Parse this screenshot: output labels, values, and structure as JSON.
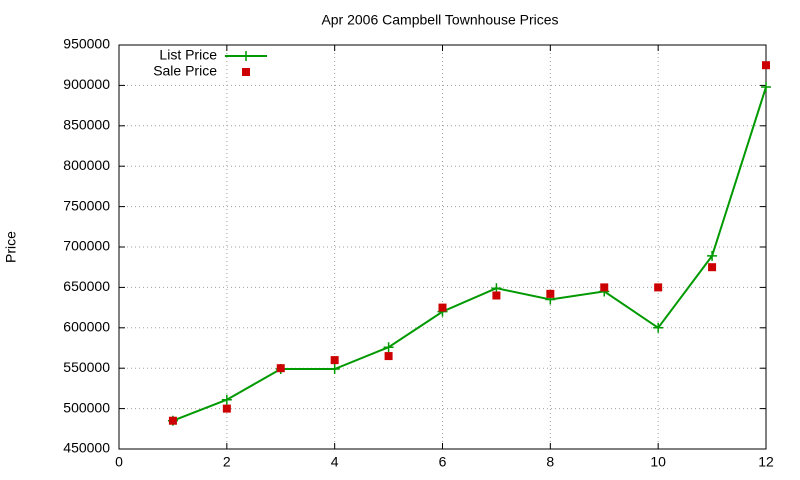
{
  "chart_data": {
    "type": "line",
    "title": "Apr 2006 Campbell Townhouse Prices",
    "y_label": "Price",
    "x": [
      1,
      2,
      3,
      4,
      5,
      6,
      7,
      8,
      9,
      10,
      11,
      12
    ],
    "series": [
      {
        "name": "List Price",
        "color": "#009900",
        "mode": "linespoints",
        "values": [
          485000,
          511000,
          549000,
          549000,
          576000,
          620000,
          649000,
          635000,
          645000,
          600000,
          689000,
          898000
        ]
      },
      {
        "name": "Sale Price",
        "color": "#cc0000",
        "mode": "points",
        "values": [
          485000,
          500000,
          550000,
          560000,
          565000,
          625000,
          640000,
          642000,
          650000,
          650000,
          675000,
          925000
        ]
      }
    ],
    "xlim": [
      0,
      12
    ],
    "xticks": [
      0,
      2,
      4,
      6,
      8,
      10,
      12
    ],
    "ylim": [
      450000,
      950000
    ],
    "yticks": [
      450000,
      500000,
      550000,
      600000,
      650000,
      700000,
      750000,
      800000,
      850000,
      900000,
      950000
    ],
    "grid": true,
    "legend": "top-left"
  }
}
